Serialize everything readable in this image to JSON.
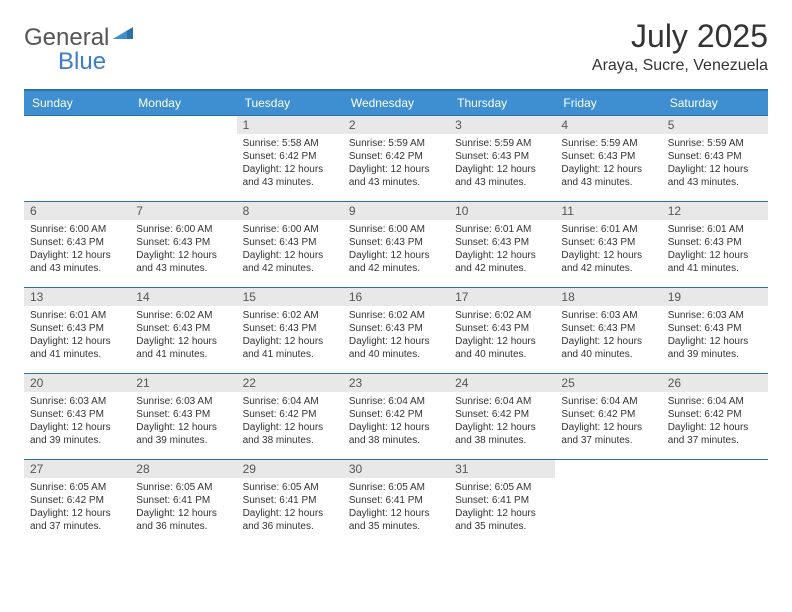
{
  "logo": {
    "general": "General",
    "blue": "Blue"
  },
  "title": "July 2025",
  "location": "Araya, Sucre, Venezuela",
  "colors": {
    "header_bg": "#3d8fd1",
    "header_border": "#2f6fa8",
    "daynum_bg": "#e8e8e8",
    "logo_gray": "#555555",
    "logo_blue": "#3a7fc4"
  },
  "weekdays": [
    "Sunday",
    "Monday",
    "Tuesday",
    "Wednesday",
    "Thursday",
    "Friday",
    "Saturday"
  ],
  "weeks": [
    [
      null,
      null,
      {
        "n": "1",
        "sunrise": "5:58 AM",
        "sunset": "6:42 PM",
        "daylight": "12 hours and 43 minutes."
      },
      {
        "n": "2",
        "sunrise": "5:59 AM",
        "sunset": "6:42 PM",
        "daylight": "12 hours and 43 minutes."
      },
      {
        "n": "3",
        "sunrise": "5:59 AM",
        "sunset": "6:43 PM",
        "daylight": "12 hours and 43 minutes."
      },
      {
        "n": "4",
        "sunrise": "5:59 AM",
        "sunset": "6:43 PM",
        "daylight": "12 hours and 43 minutes."
      },
      {
        "n": "5",
        "sunrise": "5:59 AM",
        "sunset": "6:43 PM",
        "daylight": "12 hours and 43 minutes."
      }
    ],
    [
      {
        "n": "6",
        "sunrise": "6:00 AM",
        "sunset": "6:43 PM",
        "daylight": "12 hours and 43 minutes."
      },
      {
        "n": "7",
        "sunrise": "6:00 AM",
        "sunset": "6:43 PM",
        "daylight": "12 hours and 43 minutes."
      },
      {
        "n": "8",
        "sunrise": "6:00 AM",
        "sunset": "6:43 PM",
        "daylight": "12 hours and 42 minutes."
      },
      {
        "n": "9",
        "sunrise": "6:00 AM",
        "sunset": "6:43 PM",
        "daylight": "12 hours and 42 minutes."
      },
      {
        "n": "10",
        "sunrise": "6:01 AM",
        "sunset": "6:43 PM",
        "daylight": "12 hours and 42 minutes."
      },
      {
        "n": "11",
        "sunrise": "6:01 AM",
        "sunset": "6:43 PM",
        "daylight": "12 hours and 42 minutes."
      },
      {
        "n": "12",
        "sunrise": "6:01 AM",
        "sunset": "6:43 PM",
        "daylight": "12 hours and 41 minutes."
      }
    ],
    [
      {
        "n": "13",
        "sunrise": "6:01 AM",
        "sunset": "6:43 PM",
        "daylight": "12 hours and 41 minutes."
      },
      {
        "n": "14",
        "sunrise": "6:02 AM",
        "sunset": "6:43 PM",
        "daylight": "12 hours and 41 minutes."
      },
      {
        "n": "15",
        "sunrise": "6:02 AM",
        "sunset": "6:43 PM",
        "daylight": "12 hours and 41 minutes."
      },
      {
        "n": "16",
        "sunrise": "6:02 AM",
        "sunset": "6:43 PM",
        "daylight": "12 hours and 40 minutes."
      },
      {
        "n": "17",
        "sunrise": "6:02 AM",
        "sunset": "6:43 PM",
        "daylight": "12 hours and 40 minutes."
      },
      {
        "n": "18",
        "sunrise": "6:03 AM",
        "sunset": "6:43 PM",
        "daylight": "12 hours and 40 minutes."
      },
      {
        "n": "19",
        "sunrise": "6:03 AM",
        "sunset": "6:43 PM",
        "daylight": "12 hours and 39 minutes."
      }
    ],
    [
      {
        "n": "20",
        "sunrise": "6:03 AM",
        "sunset": "6:43 PM",
        "daylight": "12 hours and 39 minutes."
      },
      {
        "n": "21",
        "sunrise": "6:03 AM",
        "sunset": "6:43 PM",
        "daylight": "12 hours and 39 minutes."
      },
      {
        "n": "22",
        "sunrise": "6:04 AM",
        "sunset": "6:42 PM",
        "daylight": "12 hours and 38 minutes."
      },
      {
        "n": "23",
        "sunrise": "6:04 AM",
        "sunset": "6:42 PM",
        "daylight": "12 hours and 38 minutes."
      },
      {
        "n": "24",
        "sunrise": "6:04 AM",
        "sunset": "6:42 PM",
        "daylight": "12 hours and 38 minutes."
      },
      {
        "n": "25",
        "sunrise": "6:04 AM",
        "sunset": "6:42 PM",
        "daylight": "12 hours and 37 minutes."
      },
      {
        "n": "26",
        "sunrise": "6:04 AM",
        "sunset": "6:42 PM",
        "daylight": "12 hours and 37 minutes."
      }
    ],
    [
      {
        "n": "27",
        "sunrise": "6:05 AM",
        "sunset": "6:42 PM",
        "daylight": "12 hours and 37 minutes."
      },
      {
        "n": "28",
        "sunrise": "6:05 AM",
        "sunset": "6:41 PM",
        "daylight": "12 hours and 36 minutes."
      },
      {
        "n": "29",
        "sunrise": "6:05 AM",
        "sunset": "6:41 PM",
        "daylight": "12 hours and 36 minutes."
      },
      {
        "n": "30",
        "sunrise": "6:05 AM",
        "sunset": "6:41 PM",
        "daylight": "12 hours and 35 minutes."
      },
      {
        "n": "31",
        "sunrise": "6:05 AM",
        "sunset": "6:41 PM",
        "daylight": "12 hours and 35 minutes."
      },
      null,
      null
    ]
  ],
  "labels": {
    "sunrise": "Sunrise:",
    "sunset": "Sunset:",
    "daylight": "Daylight:"
  }
}
